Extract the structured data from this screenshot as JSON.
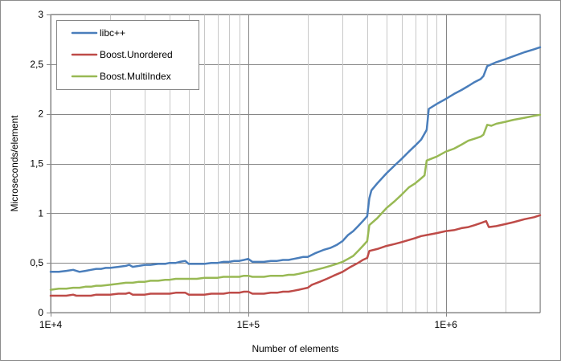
{
  "chart_data": {
    "type": "line",
    "xlabel": "Number of elements",
    "ylabel": "Microseconds/element",
    "xscale": "log",
    "xlim": [
      10000,
      3000000
    ],
    "ylim": [
      0,
      3
    ],
    "x_ticks": [
      {
        "value": 10000,
        "label": "1E+4"
      },
      {
        "value": 100000,
        "label": "1E+5"
      },
      {
        "value": 1000000,
        "label": "1E+6"
      }
    ],
    "y_ticks": [
      {
        "value": 0,
        "label": "0"
      },
      {
        "value": 0.5,
        "label": "0,5"
      },
      {
        "value": 1,
        "label": "1"
      },
      {
        "value": 1.5,
        "label": "1,5"
      },
      {
        "value": 2,
        "label": "2"
      },
      {
        "value": 2.5,
        "label": "2,5"
      },
      {
        "value": 3,
        "label": "3"
      }
    ],
    "grid": {
      "x_major": true,
      "x_minor": true,
      "y_major": true
    },
    "legend_position": "top-left",
    "series": [
      {
        "name": "libc++",
        "color": "#4a7ebb",
        "points": [
          [
            10000,
            0.41
          ],
          [
            11000,
            0.41
          ],
          [
            12000,
            0.42
          ],
          [
            13000,
            0.43
          ],
          [
            13500,
            0.42
          ],
          [
            14000,
            0.41
          ],
          [
            15000,
            0.42
          ],
          [
            16000,
            0.43
          ],
          [
            17000,
            0.44
          ],
          [
            18000,
            0.44
          ],
          [
            19000,
            0.45
          ],
          [
            20000,
            0.45
          ],
          [
            22000,
            0.46
          ],
          [
            24000,
            0.47
          ],
          [
            25000,
            0.48
          ],
          [
            26000,
            0.46
          ],
          [
            28000,
            0.47
          ],
          [
            30000,
            0.48
          ],
          [
            32000,
            0.48
          ],
          [
            35000,
            0.49
          ],
          [
            38000,
            0.49
          ],
          [
            40000,
            0.5
          ],
          [
            43000,
            0.5
          ],
          [
            45000,
            0.51
          ],
          [
            48000,
            0.52
          ],
          [
            50000,
            0.49
          ],
          [
            55000,
            0.49
          ],
          [
            60000,
            0.49
          ],
          [
            65000,
            0.5
          ],
          [
            70000,
            0.5
          ],
          [
            75000,
            0.51
          ],
          [
            80000,
            0.51
          ],
          [
            85000,
            0.52
          ],
          [
            90000,
            0.52
          ],
          [
            95000,
            0.53
          ],
          [
            100000,
            0.54
          ],
          [
            105000,
            0.51
          ],
          [
            110000,
            0.51
          ],
          [
            120000,
            0.51
          ],
          [
            130000,
            0.52
          ],
          [
            140000,
            0.52
          ],
          [
            150000,
            0.53
          ],
          [
            160000,
            0.53
          ],
          [
            170000,
            0.54
          ],
          [
            180000,
            0.55
          ],
          [
            190000,
            0.56
          ],
          [
            200000,
            0.56
          ],
          [
            220000,
            0.6
          ],
          [
            240000,
            0.63
          ],
          [
            260000,
            0.65
          ],
          [
            280000,
            0.68
          ],
          [
            300000,
            0.72
          ],
          [
            320000,
            0.78
          ],
          [
            340000,
            0.82
          ],
          [
            360000,
            0.87
          ],
          [
            380000,
            0.92
          ],
          [
            400000,
            0.97
          ],
          [
            410000,
            1.15
          ],
          [
            420000,
            1.23
          ],
          [
            450000,
            1.3
          ],
          [
            500000,
            1.4
          ],
          [
            550000,
            1.48
          ],
          [
            600000,
            1.55
          ],
          [
            650000,
            1.62
          ],
          [
            700000,
            1.68
          ],
          [
            750000,
            1.74
          ],
          [
            780000,
            1.8
          ],
          [
            800000,
            1.84
          ],
          [
            820000,
            2.05
          ],
          [
            900000,
            2.1
          ],
          [
            1000000,
            2.15
          ],
          [
            1100000,
            2.2
          ],
          [
            1200000,
            2.24
          ],
          [
            1300000,
            2.28
          ],
          [
            1400000,
            2.32
          ],
          [
            1500000,
            2.35
          ],
          [
            1550000,
            2.38
          ],
          [
            1620000,
            2.48
          ],
          [
            1800000,
            2.52
          ],
          [
            2000000,
            2.55
          ],
          [
            2200000,
            2.58
          ],
          [
            2500000,
            2.62
          ],
          [
            2800000,
            2.65
          ],
          [
            3000000,
            2.67
          ]
        ]
      },
      {
        "name": "Boost.Unordered",
        "color": "#be4b48",
        "points": [
          [
            10000,
            0.17
          ],
          [
            11000,
            0.17
          ],
          [
            12000,
            0.17
          ],
          [
            13000,
            0.18
          ],
          [
            13500,
            0.17
          ],
          [
            14000,
            0.17
          ],
          [
            15000,
            0.17
          ],
          [
            16000,
            0.17
          ],
          [
            17000,
            0.18
          ],
          [
            18000,
            0.18
          ],
          [
            20000,
            0.18
          ],
          [
            22000,
            0.19
          ],
          [
            24000,
            0.19
          ],
          [
            25000,
            0.2
          ],
          [
            26000,
            0.18
          ],
          [
            28000,
            0.18
          ],
          [
            30000,
            0.18
          ],
          [
            32000,
            0.19
          ],
          [
            35000,
            0.19
          ],
          [
            38000,
            0.19
          ],
          [
            40000,
            0.19
          ],
          [
            43000,
            0.2
          ],
          [
            45000,
            0.2
          ],
          [
            48000,
            0.2
          ],
          [
            50000,
            0.18
          ],
          [
            55000,
            0.18
          ],
          [
            60000,
            0.18
          ],
          [
            65000,
            0.19
          ],
          [
            70000,
            0.19
          ],
          [
            75000,
            0.19
          ],
          [
            80000,
            0.2
          ],
          [
            85000,
            0.2
          ],
          [
            90000,
            0.2
          ],
          [
            95000,
            0.21
          ],
          [
            100000,
            0.21
          ],
          [
            105000,
            0.19
          ],
          [
            110000,
            0.19
          ],
          [
            120000,
            0.19
          ],
          [
            130000,
            0.2
          ],
          [
            140000,
            0.2
          ],
          [
            150000,
            0.21
          ],
          [
            160000,
            0.21
          ],
          [
            170000,
            0.22
          ],
          [
            180000,
            0.23
          ],
          [
            190000,
            0.24
          ],
          [
            200000,
            0.25
          ],
          [
            210000,
            0.28
          ],
          [
            230000,
            0.31
          ],
          [
            250000,
            0.34
          ],
          [
            270000,
            0.37
          ],
          [
            300000,
            0.41
          ],
          [
            330000,
            0.46
          ],
          [
            360000,
            0.5
          ],
          [
            380000,
            0.53
          ],
          [
            400000,
            0.55
          ],
          [
            410000,
            0.62
          ],
          [
            450000,
            0.64
          ],
          [
            500000,
            0.67
          ],
          [
            550000,
            0.69
          ],
          [
            600000,
            0.71
          ],
          [
            650000,
            0.73
          ],
          [
            700000,
            0.75
          ],
          [
            750000,
            0.77
          ],
          [
            800000,
            0.78
          ],
          [
            900000,
            0.8
          ],
          [
            1000000,
            0.82
          ],
          [
            1100000,
            0.83
          ],
          [
            1200000,
            0.85
          ],
          [
            1300000,
            0.86
          ],
          [
            1400000,
            0.88
          ],
          [
            1500000,
            0.9
          ],
          [
            1600000,
            0.92
          ],
          [
            1650000,
            0.86
          ],
          [
            1800000,
            0.87
          ],
          [
            2000000,
            0.89
          ],
          [
            2200000,
            0.91
          ],
          [
            2500000,
            0.94
          ],
          [
            2800000,
            0.96
          ],
          [
            3000000,
            0.98
          ]
        ]
      },
      {
        "name": "Boost.MultiIndex",
        "color": "#98b954",
        "points": [
          [
            10000,
            0.23
          ],
          [
            11000,
            0.24
          ],
          [
            12000,
            0.24
          ],
          [
            13000,
            0.25
          ],
          [
            14000,
            0.25
          ],
          [
            15000,
            0.26
          ],
          [
            16000,
            0.26
          ],
          [
            17000,
            0.27
          ],
          [
            18000,
            0.27
          ],
          [
            20000,
            0.28
          ],
          [
            22000,
            0.29
          ],
          [
            24000,
            0.3
          ],
          [
            25000,
            0.3
          ],
          [
            26000,
            0.3
          ],
          [
            28000,
            0.31
          ],
          [
            30000,
            0.31
          ],
          [
            32000,
            0.32
          ],
          [
            35000,
            0.32
          ],
          [
            38000,
            0.33
          ],
          [
            40000,
            0.33
          ],
          [
            43000,
            0.34
          ],
          [
            45000,
            0.34
          ],
          [
            48000,
            0.34
          ],
          [
            50000,
            0.34
          ],
          [
            55000,
            0.34
          ],
          [
            60000,
            0.35
          ],
          [
            65000,
            0.35
          ],
          [
            70000,
            0.35
          ],
          [
            75000,
            0.36
          ],
          [
            80000,
            0.36
          ],
          [
            85000,
            0.36
          ],
          [
            90000,
            0.36
          ],
          [
            95000,
            0.37
          ],
          [
            100000,
            0.37
          ],
          [
            105000,
            0.36
          ],
          [
            110000,
            0.36
          ],
          [
            120000,
            0.36
          ],
          [
            130000,
            0.37
          ],
          [
            140000,
            0.37
          ],
          [
            150000,
            0.37
          ],
          [
            160000,
            0.38
          ],
          [
            170000,
            0.38
          ],
          [
            180000,
            0.39
          ],
          [
            190000,
            0.4
          ],
          [
            200000,
            0.41
          ],
          [
            220000,
            0.43
          ],
          [
            240000,
            0.45
          ],
          [
            260000,
            0.47
          ],
          [
            280000,
            0.49
          ],
          [
            300000,
            0.51
          ],
          [
            320000,
            0.54
          ],
          [
            340000,
            0.57
          ],
          [
            360000,
            0.62
          ],
          [
            380000,
            0.67
          ],
          [
            400000,
            0.72
          ],
          [
            410000,
            0.88
          ],
          [
            450000,
            0.95
          ],
          [
            500000,
            1.05
          ],
          [
            550000,
            1.12
          ],
          [
            600000,
            1.19
          ],
          [
            650000,
            1.26
          ],
          [
            700000,
            1.3
          ],
          [
            750000,
            1.35
          ],
          [
            780000,
            1.38
          ],
          [
            800000,
            1.53
          ],
          [
            900000,
            1.57
          ],
          [
            1000000,
            1.62
          ],
          [
            1100000,
            1.65
          ],
          [
            1200000,
            1.69
          ],
          [
            1300000,
            1.73
          ],
          [
            1400000,
            1.75
          ],
          [
            1500000,
            1.77
          ],
          [
            1550000,
            1.79
          ],
          [
            1620000,
            1.89
          ],
          [
            1700000,
            1.88
          ],
          [
            1800000,
            1.9
          ],
          [
            2000000,
            1.92
          ],
          [
            2200000,
            1.94
          ],
          [
            2500000,
            1.96
          ],
          [
            2800000,
            1.98
          ],
          [
            3000000,
            1.99
          ]
        ]
      }
    ]
  }
}
